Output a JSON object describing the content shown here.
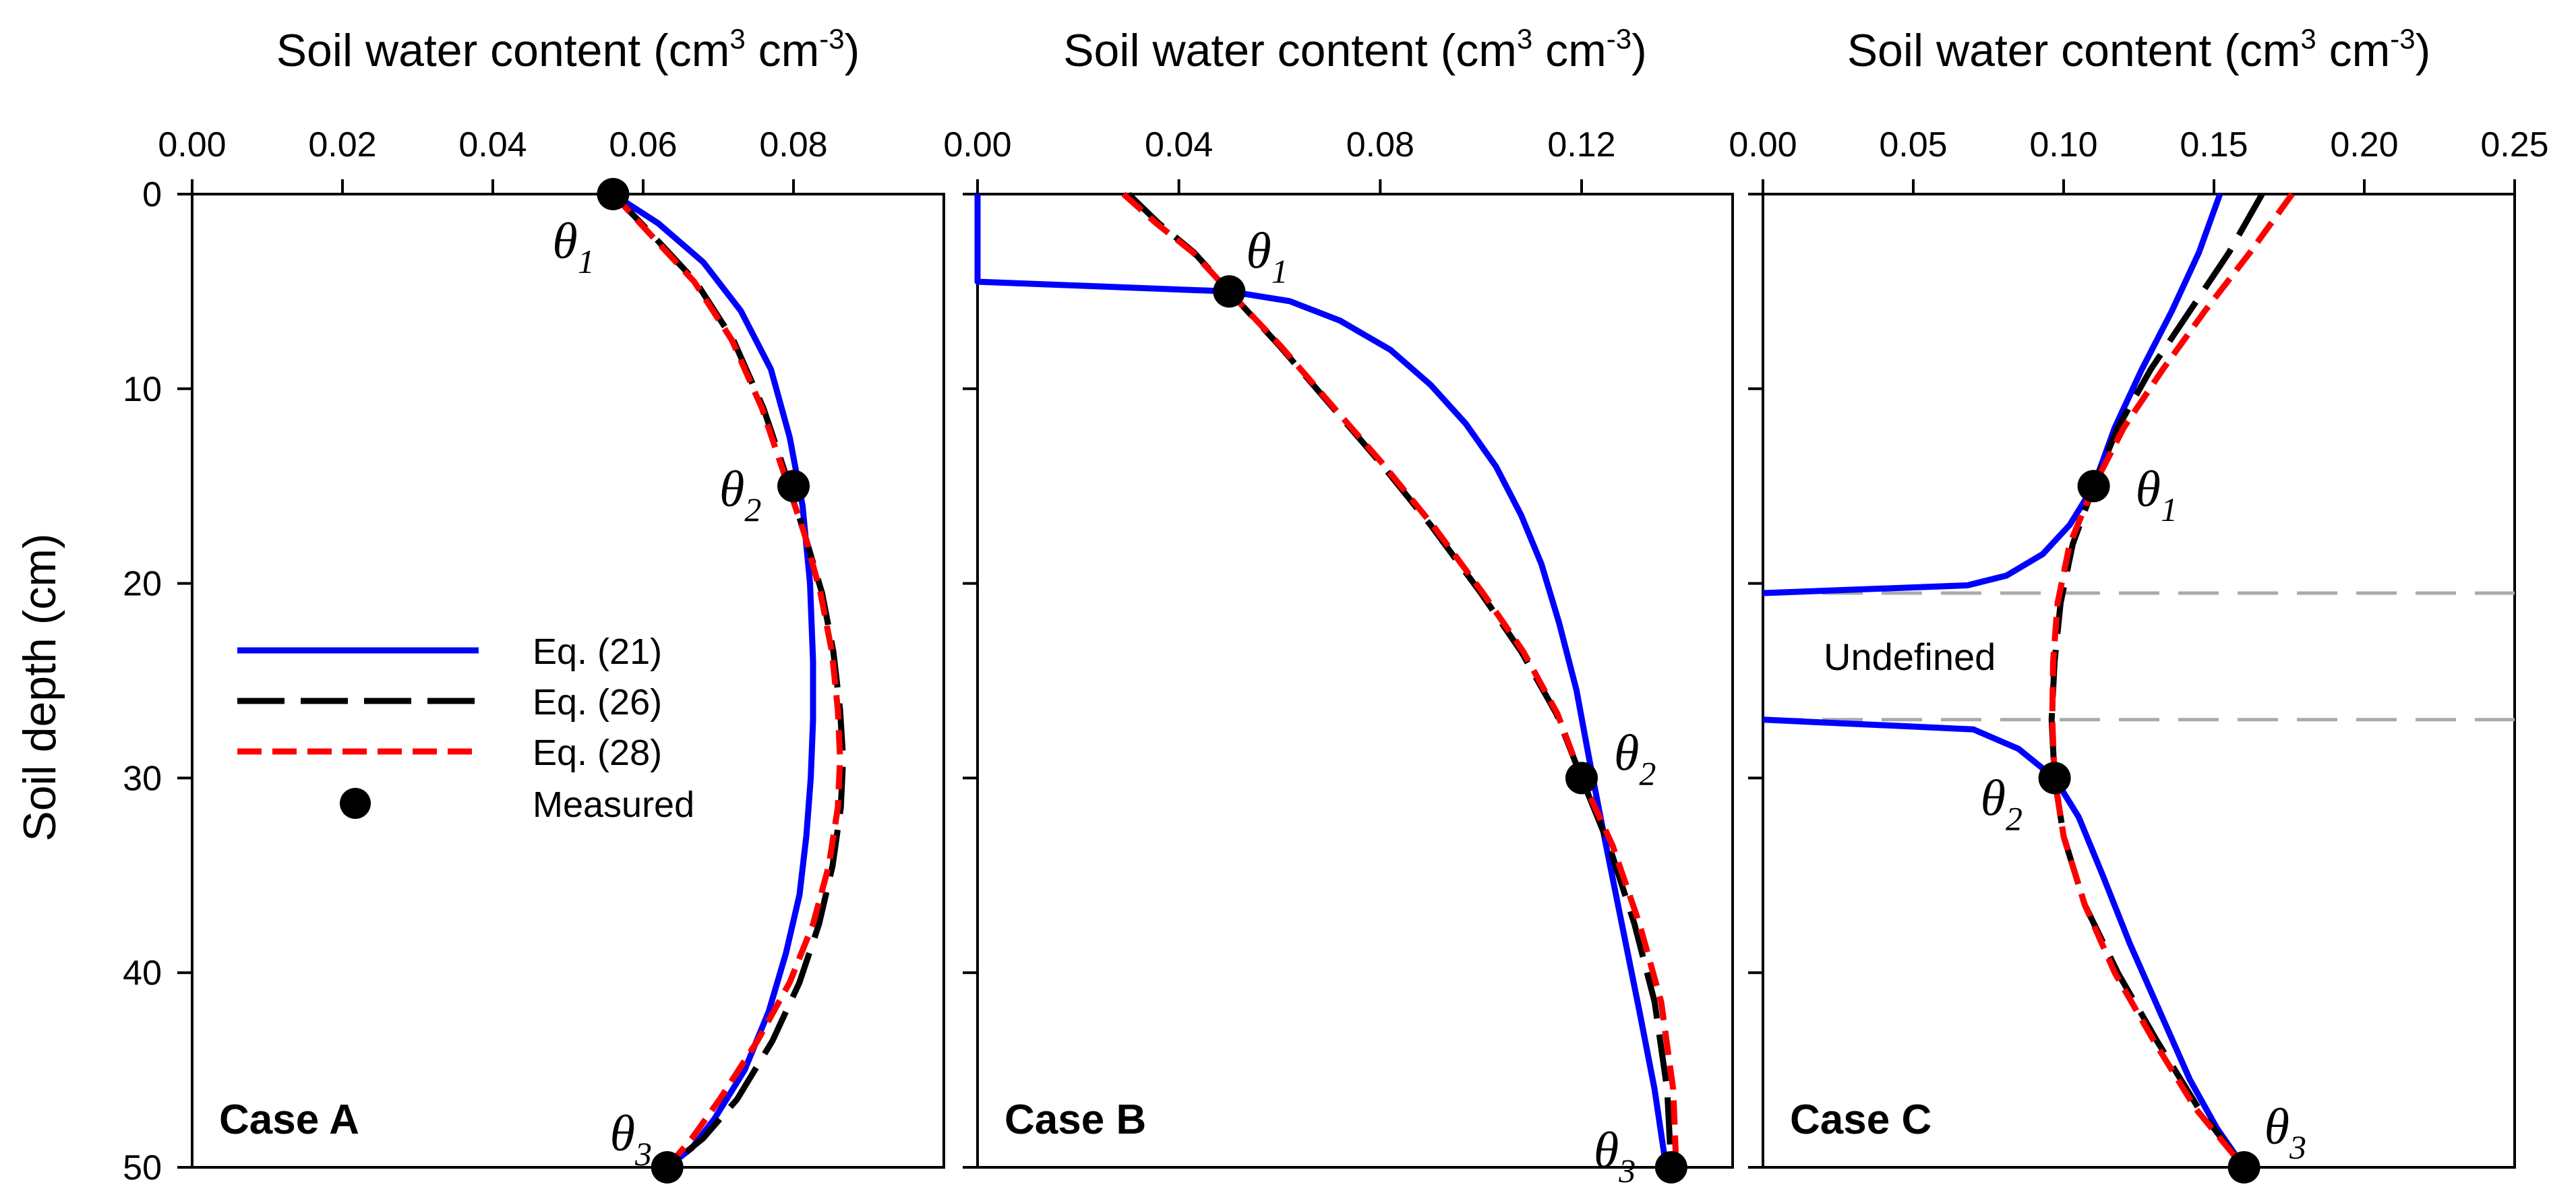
{
  "chart_data": [
    {
      "type": "line",
      "panel_label": "Case A",
      "title": "",
      "xlabel": "Soil water content",
      "xlabel_unit": "(cm",
      "xlabel_sup1": "3",
      "xlabel_unit2": " cm",
      "xlabel_sup2": "-3",
      "xlabel_close": ")",
      "ylabel": "Soil depth (cm)",
      "xlim": [
        0.0,
        0.1
      ],
      "ylim": [
        0,
        50
      ],
      "y_inverted": true,
      "x_axis_position": "top",
      "xticks": [
        "0.00",
        "0.02",
        "0.04",
        "0.06",
        "0.08"
      ],
      "xtick_values": [
        0.0,
        0.02,
        0.04,
        0.06,
        0.08
      ],
      "yticks": [
        "0",
        "10",
        "20",
        "30",
        "40",
        "50"
      ],
      "ytick_values": [
        0,
        10,
        20,
        30,
        40,
        50
      ],
      "series": [
        {
          "name": "Eq. (21)",
          "color": "#0000ff",
          "dash": "solid",
          "x": [
            0.056,
            0.062,
            0.068,
            0.073,
            0.077,
            0.0795,
            0.0812,
            0.0822,
            0.0826,
            0.0826,
            0.0823,
            0.0817,
            0.0808,
            0.079,
            0.0767,
            0.0735,
            0.0695,
            0.0665,
            0.0632
          ],
          "y": [
            0,
            1.5,
            3.5,
            6,
            9,
            12.5,
            16,
            20,
            24,
            27,
            30,
            33,
            36,
            39,
            42,
            45,
            47.5,
            49,
            50
          ]
        },
        {
          "name": "Eq. (26)",
          "color": "#000000",
          "dash": "long",
          "x": [
            0.056,
            0.061,
            0.067,
            0.072,
            0.076,
            0.0795,
            0.0815,
            0.0838,
            0.0853,
            0.0862,
            0.0866,
            0.0863,
            0.0852,
            0.0834,
            0.0808,
            0.0772,
            0.0725,
            0.068,
            0.0632
          ],
          "y": [
            0,
            2,
            4.5,
            7.5,
            11,
            15,
            17.5,
            20.5,
            23.5,
            26.5,
            29,
            31.5,
            34.5,
            37.5,
            40.5,
            43.5,
            46.5,
            48.5,
            50
          ]
        },
        {
          "name": "Eq. (28)",
          "color": "#ff0000",
          "dash": "short",
          "x": [
            0.056,
            0.0608,
            0.0668,
            0.0718,
            0.0758,
            0.0793,
            0.0815,
            0.0836,
            0.0851,
            0.0859,
            0.0862,
            0.0859,
            0.0847,
            0.0826,
            0.0795,
            0.0752,
            0.0702,
            0.0665,
            0.0632
          ],
          "y": [
            0,
            2,
            4.5,
            7.5,
            11,
            15,
            17.5,
            20.5,
            23.5,
            26.5,
            29,
            31.5,
            34.5,
            37.5,
            40.5,
            43.5,
            46.5,
            48.5,
            50
          ]
        },
        {
          "name": "Measured",
          "color": "#000000",
          "marker": "circle",
          "x": [
            0.056,
            0.08,
            0.0632
          ],
          "y": [
            0,
            15,
            50
          ],
          "labels": [
            "θ1",
            "θ2",
            "θ3"
          ]
        }
      ]
    },
    {
      "type": "line",
      "panel_label": "Case B",
      "title": "",
      "xlabel": "Soil water content",
      "xlabel_unit": "(cm",
      "xlabel_sup1": "3",
      "xlabel_unit2": " cm",
      "xlabel_sup2": "-3",
      "xlabel_close": ")",
      "xlim": [
        0.0,
        0.15
      ],
      "ylim": [
        0,
        50
      ],
      "y_inverted": true,
      "x_axis_position": "top",
      "xticks": [
        "0.00",
        "0.04",
        "0.08",
        "0.12"
      ],
      "xtick_values": [
        0.0,
        0.04,
        0.08,
        0.12
      ],
      "series": [
        {
          "name": "Eq. (21)",
          "color": "#0000ff",
          "dash": "solid",
          "x": [
            0.0,
            0.0,
            0.05,
            0.062,
            0.072,
            0.082,
            0.09,
            0.097,
            0.103,
            0.108,
            0.112,
            0.1155,
            0.119,
            0.1215,
            0.1245,
            0.128,
            0.1315,
            0.1345,
            0.1368
          ],
          "y": [
            0,
            4.5,
            5,
            5.5,
            6.5,
            8,
            9.8,
            11.8,
            14,
            16.5,
            19,
            22,
            25.5,
            29,
            33,
            37.5,
            42,
            46,
            50
          ]
        },
        {
          "name": "Eq. (26)",
          "color": "#000000",
          "dash": "long",
          "x": [
            0.03,
            0.036,
            0.043,
            0.05,
            0.06,
            0.07,
            0.08,
            0.09,
            0.1,
            0.108,
            0.115,
            0.12,
            0.1255,
            0.1305,
            0.1345,
            0.137,
            0.1378
          ],
          "y": [
            0,
            1.5,
            3,
            5,
            7.8,
            10.8,
            13.8,
            17,
            20.5,
            23.5,
            26.7,
            30,
            33.5,
            37.5,
            41.5,
            46,
            50
          ]
        },
        {
          "name": "Eq. (28)",
          "color": "#ff0000",
          "dash": "short",
          "x": [
            0.029,
            0.0355,
            0.0428,
            0.05,
            0.0602,
            0.0702,
            0.0803,
            0.0904,
            0.1004,
            0.1084,
            0.1152,
            0.12,
            0.1262,
            0.1315,
            0.1358,
            0.1382,
            0.1388
          ],
          "y": [
            0,
            1.5,
            3,
            5,
            7.8,
            10.8,
            13.8,
            17,
            20.5,
            23.5,
            26.7,
            30,
            33.5,
            37.5,
            41.5,
            46,
            50
          ]
        },
        {
          "name": "Measured",
          "color": "#000000",
          "marker": "circle",
          "x": [
            0.05,
            0.12,
            0.1378
          ],
          "y": [
            5,
            30,
            50
          ],
          "labels": [
            "θ1",
            "θ2",
            "θ3"
          ]
        }
      ]
    },
    {
      "type": "line",
      "panel_label": "Case C",
      "title": "",
      "xlabel": "Soil water content",
      "xlabel_unit": "(cm",
      "xlabel_sup1": "3",
      "xlabel_unit2": " cm",
      "xlabel_sup2": "-3",
      "xlabel_close": ")",
      "xlim": [
        0.0,
        0.25
      ],
      "ylim": [
        0,
        50
      ],
      "y_inverted": true,
      "x_axis_position": "top",
      "xticks": [
        "0.00",
        "0.05",
        "0.10",
        "0.15",
        "0.20",
        "0.25"
      ],
      "xtick_values": [
        0.0,
        0.05,
        0.1,
        0.15,
        0.2,
        0.25
      ],
      "annotation": "Undefined",
      "undefined_band": [
        20.5,
        27
      ],
      "series": [
        {
          "name": "Eq. (21)",
          "color": "#0000ff",
          "dash": "solid",
          "segments": [
            {
              "x": [
                0.152,
                0.145,
                0.136,
                0.126,
                0.117,
                0.11,
                0.102,
                0.093,
                0.081,
                0.068,
                0.0
              ],
              "y": [
                0,
                3,
                6,
                9,
                12,
                15,
                17,
                18.5,
                19.6,
                20.1,
                20.5
              ]
            },
            {
              "x": [
                0.0,
                0.07,
                0.085,
                0.097,
                0.105,
                0.113,
                0.122,
                0.132,
                0.142,
                0.151,
                0.16
              ],
              "y": [
                27,
                27.5,
                28.5,
                30,
                32,
                35,
                38.5,
                42,
                45.5,
                48,
                50
              ]
            }
          ]
        },
        {
          "name": "Eq. (26)",
          "color": "#000000",
          "dash": "long",
          "x": [
            0.166,
            0.155,
            0.142,
            0.129,
            0.118,
            0.11,
            0.103,
            0.099,
            0.097,
            0.096,
            0.097,
            0.1,
            0.107,
            0.118,
            0.131,
            0.145,
            0.16
          ],
          "y": [
            0,
            3,
            6,
            9,
            12,
            15,
            18,
            21,
            24,
            27,
            30,
            33,
            36.5,
            40,
            43.5,
            47,
            50
          ]
        },
        {
          "name": "Eq. (28)",
          "color": "#ff0000",
          "dash": "short",
          "x": [
            0.176,
            0.162,
            0.147,
            0.133,
            0.12,
            0.11,
            0.102,
            0.098,
            0.0965,
            0.0962,
            0.097,
            0.1,
            0.107,
            0.117,
            0.13,
            0.144,
            0.16
          ],
          "y": [
            0,
            3,
            6,
            9,
            12,
            15,
            18,
            21,
            24,
            27,
            30,
            33,
            36.5,
            40,
            43.5,
            47,
            50
          ]
        },
        {
          "name": "Measured",
          "color": "#000000",
          "marker": "circle",
          "x": [
            0.11,
            0.097,
            0.16
          ],
          "y": [
            15,
            30,
            50
          ],
          "labels": [
            "θ1",
            "θ2",
            "θ3"
          ]
        }
      ]
    }
  ],
  "legend": {
    "placement": "left-middle of Case A",
    "entries": [
      {
        "label": "Eq. (21)",
        "color": "#0000ff",
        "dash": "solid"
      },
      {
        "label": "Eq. (26)",
        "color": "#000000",
        "dash": "long"
      },
      {
        "label": "Eq. (28)",
        "color": "#ff0000",
        "dash": "short"
      },
      {
        "label": "Measured",
        "color": "#000000",
        "marker": "circle"
      }
    ]
  },
  "ylabel": "Soil depth (cm)",
  "colors": {
    "eq21": "#0000ff",
    "eq26": "#000000",
    "eq28": "#ff0000",
    "band": "#aaaaaa"
  }
}
